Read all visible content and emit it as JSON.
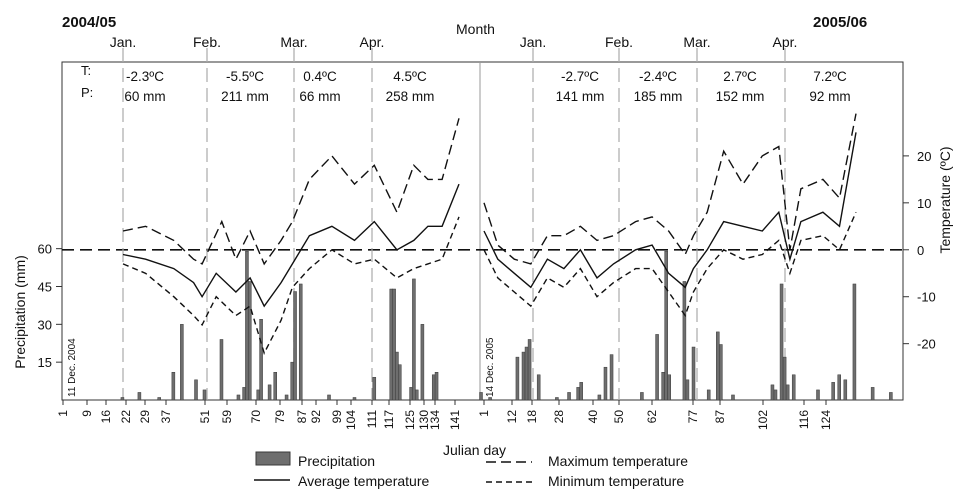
{
  "chart_data": {
    "type": "bar+line",
    "season_left": "2004/05",
    "season_right": "2005/06",
    "top_axis_label": "Month",
    "xlabel": "Julian day",
    "ylabel_left": "Precipitation (mm)",
    "ylabel_right": "Temperature (ºC)",
    "grid": false,
    "legend_position": "bottom",
    "stats_labels": {
      "t": "T:",
      "p": "P:"
    },
    "periods": [
      {
        "start_label": "11 Dec. 2004",
        "x_ticks": [
          "1",
          "9",
          "16",
          "22",
          "29",
          "37",
          "51",
          "59",
          "70",
          "79",
          "87",
          "92",
          "99",
          "104",
          "111",
          "117",
          "125",
          "130",
          "134",
          "141"
        ],
        "months": [
          "Jan.",
          "Feb.",
          "Mar.",
          "Apr."
        ],
        "month_stats": [
          {
            "t": "-2.3ºC",
            "p": "60 mm"
          },
          {
            "t": "-5.5ºC",
            "p": "211 mm"
          },
          {
            "t": "0.4ºC",
            "p": "66 mm"
          },
          {
            "t": "4.5ºC",
            "p": "258 mm"
          }
        ],
        "precipitation": [
          [
            22,
            1
          ],
          [
            28,
            3
          ],
          [
            35,
            1
          ],
          [
            40,
            11
          ],
          [
            43,
            30
          ],
          [
            48,
            8
          ],
          [
            51,
            4
          ],
          [
            57,
            24
          ],
          [
            63,
            2
          ],
          [
            65,
            5
          ],
          [
            66,
            59
          ],
          [
            67,
            47
          ],
          [
            70,
            4
          ],
          [
            71,
            32
          ],
          [
            74,
            6
          ],
          [
            76,
            11
          ],
          [
            80,
            2
          ],
          [
            82,
            15
          ],
          [
            83,
            43
          ],
          [
            85,
            46
          ],
          [
            95,
            2
          ],
          [
            104,
            1
          ],
          [
            111,
            9
          ],
          [
            117,
            44
          ],
          [
            118,
            44
          ],
          [
            119,
            19
          ],
          [
            120,
            14
          ],
          [
            124,
            5
          ],
          [
            125,
            48
          ],
          [
            126,
            4
          ],
          [
            128,
            30
          ],
          [
            132,
            10
          ],
          [
            133,
            11
          ]
        ],
        "avg_temperature": [
          [
            22,
            -1
          ],
          [
            30,
            -2
          ],
          [
            40,
            -4
          ],
          [
            47,
            -7
          ],
          [
            50,
            -10
          ],
          [
            55,
            -5
          ],
          [
            62,
            -9
          ],
          [
            67,
            -6
          ],
          [
            72,
            -12
          ],
          [
            78,
            -7
          ],
          [
            82,
            -3
          ],
          [
            88,
            3
          ],
          [
            96,
            5
          ],
          [
            104,
            2
          ],
          [
            111,
            6
          ],
          [
            119,
            0
          ],
          [
            125,
            2
          ],
          [
            130,
            5
          ],
          [
            135,
            5
          ],
          [
            141,
            14
          ]
        ],
        "max_temperature": [
          [
            22,
            4
          ],
          [
            30,
            5
          ],
          [
            40,
            2
          ],
          [
            47,
            -2
          ],
          [
            50,
            -3
          ],
          [
            57,
            6
          ],
          [
            62,
            -2
          ],
          [
            67,
            4
          ],
          [
            72,
            -3
          ],
          [
            78,
            2
          ],
          [
            82,
            6
          ],
          [
            88,
            15
          ],
          [
            96,
            20
          ],
          [
            104,
            14
          ],
          [
            111,
            18
          ],
          [
            119,
            8
          ],
          [
            125,
            18
          ],
          [
            130,
            15
          ],
          [
            135,
            15
          ],
          [
            141,
            28
          ]
        ],
        "min_temperature": [
          [
            22,
            -3
          ],
          [
            30,
            -5
          ],
          [
            40,
            -10
          ],
          [
            47,
            -14
          ],
          [
            50,
            -16
          ],
          [
            55,
            -10
          ],
          [
            62,
            -14
          ],
          [
            67,
            -12
          ],
          [
            72,
            -22
          ],
          [
            78,
            -15
          ],
          [
            82,
            -8
          ],
          [
            88,
            -4
          ],
          [
            96,
            0
          ],
          [
            104,
            -3
          ],
          [
            111,
            -2
          ],
          [
            119,
            -6
          ],
          [
            125,
            -4
          ],
          [
            130,
            -3
          ],
          [
            135,
            -2
          ],
          [
            141,
            7
          ]
        ]
      },
      {
        "start_label": "14 Dec. 2005",
        "x_ticks": [
          "1",
          "12",
          "18",
          "28",
          "40",
          "50",
          "62",
          "77",
          "87",
          "102",
          "116",
          "124"
        ],
        "months": [
          "Jan.",
          "Feb.",
          "Mar.",
          "Apr."
        ],
        "month_stats": [
          {
            "t": "-2.7ºC",
            "p": "141 mm"
          },
          {
            "t": "-2.4ºC",
            "p": "185 mm"
          },
          {
            "t": "2.7ºC",
            "p": "152 mm"
          },
          {
            "t": "7.2ºC",
            "p": "92 mm"
          }
        ],
        "precipitation": [
          [
            1,
            3
          ],
          [
            4,
            1
          ],
          [
            13,
            17
          ],
          [
            15,
            19
          ],
          [
            16,
            21
          ],
          [
            17,
            24
          ],
          [
            20,
            10
          ],
          [
            26,
            1
          ],
          [
            30,
            3
          ],
          [
            33,
            5
          ],
          [
            34,
            7
          ],
          [
            40,
            2
          ],
          [
            42,
            13
          ],
          [
            44,
            18
          ],
          [
            54,
            3
          ],
          [
            59,
            26
          ],
          [
            61,
            11
          ],
          [
            62,
            59
          ],
          [
            63,
            10
          ],
          [
            68,
            47
          ],
          [
            69,
            8
          ],
          [
            71,
            21
          ],
          [
            76,
            4
          ],
          [
            79,
            27
          ],
          [
            80,
            22
          ],
          [
            84,
            2
          ],
          [
            97,
            6
          ],
          [
            98,
            4
          ],
          [
            100,
            46
          ],
          [
            101,
            17
          ],
          [
            102,
            6
          ],
          [
            104,
            10
          ],
          [
            112,
            4
          ],
          [
            117,
            7
          ],
          [
            119,
            10
          ],
          [
            121,
            8
          ],
          [
            124,
            46
          ],
          [
            130,
            5
          ],
          [
            136,
            3
          ]
        ],
        "avg_temperature": [
          [
            1,
            4
          ],
          [
            6,
            -2
          ],
          [
            12,
            -5
          ],
          [
            18,
            -8
          ],
          [
            24,
            -2
          ],
          [
            30,
            -4
          ],
          [
            36,
            0
          ],
          [
            42,
            -6
          ],
          [
            48,
            -3
          ],
          [
            56,
            0
          ],
          [
            62,
            1
          ],
          [
            68,
            -5
          ],
          [
            74,
            -8
          ],
          [
            77,
            -4
          ],
          [
            82,
            0
          ],
          [
            88,
            6
          ],
          [
            95,
            5
          ],
          [
            102,
            4
          ],
          [
            108,
            8
          ],
          [
            112,
            -2
          ],
          [
            116,
            6
          ],
          [
            124,
            8
          ],
          [
            130,
            5
          ],
          [
            136,
            25
          ]
        ],
        "max_temperature": [
          [
            1,
            10
          ],
          [
            6,
            1
          ],
          [
            12,
            -2
          ],
          [
            18,
            -3
          ],
          [
            24,
            3
          ],
          [
            30,
            3
          ],
          [
            36,
            5
          ],
          [
            42,
            2
          ],
          [
            48,
            3
          ],
          [
            56,
            6
          ],
          [
            62,
            7
          ],
          [
            68,
            4
          ],
          [
            74,
            -1
          ],
          [
            77,
            3
          ],
          [
            82,
            8
          ],
          [
            88,
            21
          ],
          [
            95,
            14
          ],
          [
            102,
            20
          ],
          [
            108,
            22
          ],
          [
            112,
            0
          ],
          [
            116,
            13
          ],
          [
            124,
            15
          ],
          [
            130,
            11
          ],
          [
            136,
            29
          ]
        ],
        "min_temperature": [
          [
            1,
            0
          ],
          [
            6,
            -6
          ],
          [
            12,
            -9
          ],
          [
            18,
            -12
          ],
          [
            24,
            -6
          ],
          [
            30,
            -8
          ],
          [
            36,
            -4
          ],
          [
            42,
            -10
          ],
          [
            48,
            -7
          ],
          [
            56,
            -4
          ],
          [
            62,
            -4
          ],
          [
            68,
            -9
          ],
          [
            74,
            -14
          ],
          [
            77,
            -9
          ],
          [
            82,
            -4
          ],
          [
            88,
            0
          ],
          [
            95,
            -2
          ],
          [
            102,
            -1
          ],
          [
            108,
            2
          ],
          [
            112,
            -5
          ],
          [
            116,
            2
          ],
          [
            124,
            3
          ],
          [
            130,
            0
          ],
          [
            136,
            8
          ]
        ]
      }
    ],
    "temperature_ticks": [
      -20,
      -10,
      0,
      10,
      20
    ],
    "temperature_range": [
      -32,
      40
    ],
    "precipitation_ticks": [
      15,
      30,
      45,
      60
    ],
    "precipitation_range": [
      0,
      134
    ],
    "legend": {
      "precipitation": "Precipitation",
      "average": "Average temperature",
      "maximum": "Maximum temperature",
      "minimum": "Minimum temperature"
    },
    "colors": {
      "bar_fill": "#6e6e6e",
      "bar_stroke": "#3a3a3a",
      "line": "#111111",
      "month_divider": "#aaaaaa"
    }
  }
}
